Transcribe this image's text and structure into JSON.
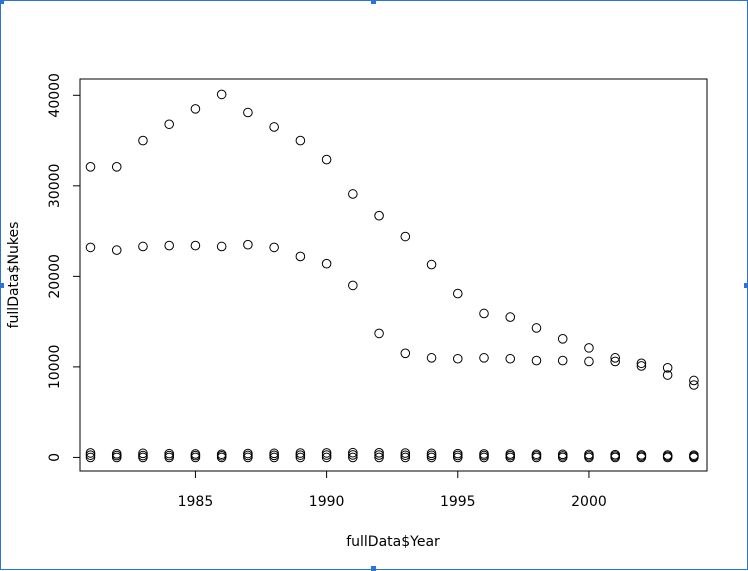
{
  "window": {
    "selection_color": "#2b73d9"
  },
  "chart_data": {
    "type": "scatter",
    "title": "",
    "xlabel": "fullData$Year",
    "ylabel": "fullData$Nukes",
    "xlim": [
      1980.6,
      2004.5
    ],
    "ylim": [
      -1500,
      41800
    ],
    "x_ticks": [
      1985,
      1990,
      1995,
      2000
    ],
    "x_tick_labels": [
      "1985",
      "1990",
      "1995",
      "2000"
    ],
    "y_ticks": [
      0,
      10000,
      20000,
      30000,
      40000
    ],
    "y_tick_labels": [
      "0",
      "10000",
      "20000",
      "30000",
      "40000"
    ],
    "grid": false,
    "marker": "open-circle",
    "series": [
      {
        "x": [
          1981,
          1982,
          1983,
          1984,
          1985,
          1986,
          1987,
          1988,
          1989,
          1990,
          1991,
          1992,
          1993,
          1994,
          1995,
          1996,
          1997,
          1998,
          1999,
          2000,
          2001,
          2002,
          2003,
          2004
        ],
        "y": [
          32100,
          32100,
          35000,
          36800,
          38500,
          40100,
          38100,
          36500,
          35000,
          32900,
          29100,
          26700,
          24400,
          21300,
          18100,
          15900,
          15500,
          14300,
          13100,
          12100,
          11000,
          10400,
          9900,
          8500
        ]
      },
      {
        "x": [
          1981,
          1982,
          1983,
          1984,
          1985,
          1986,
          1987,
          1988,
          1989,
          1990,
          1991,
          1992,
          1993,
          1994,
          1995,
          1996,
          1997,
          1998,
          1999,
          2000,
          2001,
          2002,
          2003,
          2004
        ],
        "y": [
          23200,
          22900,
          23300,
          23400,
          23400,
          23300,
          23500,
          23200,
          22200,
          21400,
          19000,
          13700,
          11500,
          11000,
          10900,
          11000,
          10900,
          10700,
          10700,
          10600,
          10600,
          10100,
          9100,
          8000
        ]
      },
      {
        "x": [
          1981,
          1982,
          1983,
          1984,
          1985,
          1986,
          1987,
          1988,
          1989,
          1990,
          1991,
          1992,
          1993,
          1994,
          1995,
          1996,
          1997,
          1998,
          1999,
          2000,
          2001,
          2002,
          2003,
          2004
        ],
        "y": [
          500,
          400,
          450,
          420,
          380,
          350,
          430,
          450,
          480,
          500,
          520,
          510,
          480,
          450,
          420,
          390,
          370,
          350,
          340,
          330,
          300,
          280,
          260,
          250
        ]
      },
      {
        "x": [
          1981,
          1982,
          1983,
          1984,
          1985,
          1986,
          1987,
          1988,
          1989,
          1990,
          1991,
          1992,
          1993,
          1994,
          1995,
          1996,
          1997,
          1998,
          1999,
          2000,
          2001,
          2002,
          2003,
          2004
        ],
        "y": [
          250,
          200,
          200,
          200,
          200,
          180,
          220,
          230,
          250,
          260,
          270,
          260,
          240,
          230,
          220,
          200,
          190,
          180,
          170,
          160,
          150,
          140,
          130,
          120
        ]
      },
      {
        "x": [
          1981,
          1982,
          1983,
          1984,
          1985,
          1986,
          1987,
          1988,
          1989,
          1990,
          1991,
          1992,
          1993,
          1994,
          1995,
          1996,
          1997,
          1998,
          1999,
          2000,
          2001,
          2002,
          2003,
          2004
        ],
        "y": [
          0,
          0,
          0,
          0,
          0,
          0,
          0,
          0,
          0,
          0,
          0,
          0,
          0,
          0,
          0,
          0,
          0,
          0,
          0,
          0,
          0,
          0,
          0,
          0
        ]
      }
    ]
  }
}
